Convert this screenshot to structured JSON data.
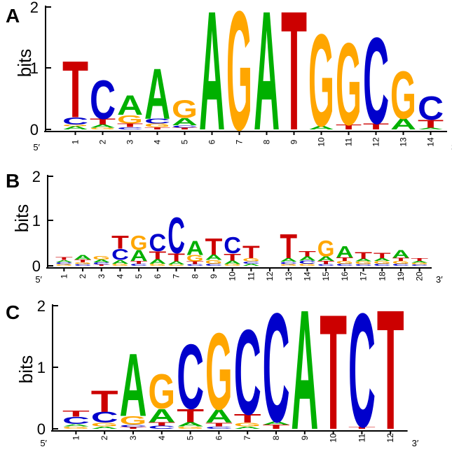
{
  "colors": {
    "A": "#00b000",
    "C": "#0000cc",
    "G": "#ffa600",
    "T": "#cc0000"
  },
  "ylabel": "bits",
  "end_labels": {
    "start": "5′",
    "end": "3′"
  },
  "panels": [
    {
      "label": "A",
      "yticks": [
        "0",
        "1",
        "2"
      ],
      "positions": [
        {
          "n": "1",
          "stack": [
            [
              "A",
              0.05
            ],
            [
              "G",
              0.03
            ],
            [
              "C",
              0.12
            ],
            [
              "T",
              0.95
            ]
          ]
        },
        {
          "n": "2",
          "stack": [
            [
              "G",
              0.03
            ],
            [
              "A",
              0.05
            ],
            [
              "T",
              0.1
            ],
            [
              "C",
              0.65
            ]
          ]
        },
        {
          "n": "3",
          "stack": [
            [
              "C",
              0.04
            ],
            [
              "T",
              0.06
            ],
            [
              "G",
              0.14
            ],
            [
              "A",
              0.33
            ]
          ]
        },
        {
          "n": "4",
          "stack": [
            [
              "T",
              0.04
            ],
            [
              "G",
              0.06
            ],
            [
              "C",
              0.08
            ],
            [
              "A",
              0.85
            ]
          ]
        },
        {
          "n": "5",
          "stack": [
            [
              "T",
              0.03
            ],
            [
              "C",
              0.04
            ],
            [
              "A",
              0.12
            ],
            [
              "G",
              0.3
            ]
          ]
        },
        {
          "n": "6",
          "stack": [
            [
              "A",
              2.0
            ]
          ]
        },
        {
          "n": "7",
          "stack": [
            [
              "G",
              2.0
            ]
          ]
        },
        {
          "n": "8",
          "stack": [
            [
              "A",
              2.0
            ]
          ]
        },
        {
          "n": "9",
          "stack": [
            [
              "T",
              2.0
            ]
          ]
        },
        {
          "n": "10",
          "stack": [
            [
              "A",
              0.06
            ],
            [
              "G",
              1.55
            ]
          ]
        },
        {
          "n": "11",
          "stack": [
            [
              "T",
              0.08
            ],
            [
              "G",
              1.38
            ]
          ]
        },
        {
          "n": "12",
          "stack": [
            [
              "T",
              0.1
            ],
            [
              "C",
              1.45
            ]
          ]
        },
        {
          "n": "13",
          "stack": [
            [
              "A",
              0.18
            ],
            [
              "G",
              0.8
            ]
          ]
        },
        {
          "n": "14",
          "stack": [
            [
              "A",
              0.03
            ],
            [
              "T",
              0.13
            ],
            [
              "C",
              0.4
            ]
          ]
        }
      ]
    },
    {
      "label": "B",
      "yticks": [
        "0",
        "1",
        "2"
      ],
      "positions": [
        {
          "n": "1",
          "stack": [
            [
              "G",
              0.04
            ],
            [
              "C",
              0.04
            ],
            [
              "A",
              0.05
            ],
            [
              "T",
              0.06
            ]
          ]
        },
        {
          "n": "2",
          "stack": [
            [
              "C",
              0.04
            ],
            [
              "G",
              0.04
            ],
            [
              "T",
              0.06
            ],
            [
              "A",
              0.1
            ]
          ]
        },
        {
          "n": "3",
          "stack": [
            [
              "T",
              0.03
            ],
            [
              "C",
              0.05
            ],
            [
              "A",
              0.06
            ],
            [
              "G",
              0.08
            ]
          ]
        },
        {
          "n": "4",
          "stack": [
            [
              "G",
              0.05
            ],
            [
              "A",
              0.08
            ],
            [
              "C",
              0.25
            ],
            [
              "T",
              0.3
            ]
          ]
        },
        {
          "n": "5",
          "stack": [
            [
              "C",
              0.05
            ],
            [
              "T",
              0.06
            ],
            [
              "A",
              0.25
            ],
            [
              "G",
              0.32
            ]
          ]
        },
        {
          "n": "6",
          "stack": [
            [
              "G",
              0.05
            ],
            [
              "A",
              0.1
            ],
            [
              "T",
              0.18
            ],
            [
              "C",
              0.4
            ]
          ]
        },
        {
          "n": "7",
          "stack": [
            [
              "G",
              0.03
            ],
            [
              "A",
              0.07
            ],
            [
              "T",
              0.18
            ],
            [
              "C",
              0.82
            ]
          ]
        },
        {
          "n": "8",
          "stack": [
            [
              "C",
              0.04
            ],
            [
              "T",
              0.06
            ],
            [
              "G",
              0.14
            ],
            [
              "A",
              0.32
            ]
          ]
        },
        {
          "n": "9",
          "stack": [
            [
              "C",
              0.05
            ],
            [
              "G",
              0.08
            ],
            [
              "A",
              0.12
            ],
            [
              "T",
              0.38
            ]
          ]
        },
        {
          "n": "10",
          "stack": [
            [
              "G",
              0.04
            ],
            [
              "A",
              0.08
            ],
            [
              "T",
              0.16
            ],
            [
              "C",
              0.38
            ]
          ]
        },
        {
          "n": "11",
          "stack": [
            [
              "A",
              0.05
            ],
            [
              "C",
              0.05
            ],
            [
              "G",
              0.07
            ],
            [
              "T",
              0.28
            ]
          ]
        },
        {
          "n": "12",
          "stack": []
        },
        {
          "n": "13",
          "stack": [
            [
              "G",
              0.04
            ],
            [
              "C",
              0.05
            ],
            [
              "A",
              0.08
            ],
            [
              "T",
              0.55
            ]
          ]
        },
        {
          "n": "14",
          "stack": [
            [
              "G",
              0.05
            ],
            [
              "C",
              0.07
            ],
            [
              "A",
              0.09
            ],
            [
              "T",
              0.12
            ]
          ]
        },
        {
          "n": "15",
          "stack": [
            [
              "C",
              0.04
            ],
            [
              "T",
              0.07
            ],
            [
              "A",
              0.1
            ],
            [
              "G",
              0.36
            ]
          ]
        },
        {
          "n": "16",
          "stack": [
            [
              "C",
              0.05
            ],
            [
              "G",
              0.06
            ],
            [
              "T",
              0.08
            ],
            [
              "A",
              0.26
            ]
          ]
        },
        {
          "n": "17",
          "stack": [
            [
              "C",
              0.04
            ],
            [
              "G",
              0.06
            ],
            [
              "A",
              0.06
            ],
            [
              "T",
              0.16
            ]
          ]
        },
        {
          "n": "18",
          "stack": [
            [
              "C",
              0.05
            ],
            [
              "G",
              0.06
            ],
            [
              "A",
              0.06
            ],
            [
              "T",
              0.12
            ]
          ]
        },
        {
          "n": "19",
          "stack": [
            [
              "C",
              0.05
            ],
            [
              "G",
              0.06
            ],
            [
              "T",
              0.07
            ],
            [
              "A",
              0.18
            ]
          ]
        },
        {
          "n": "20",
          "stack": [
            [
              "C",
              0.03
            ],
            [
              "G",
              0.04
            ],
            [
              "A",
              0.04
            ],
            [
              "T",
              0.06
            ]
          ]
        }
      ]
    },
    {
      "label": "C",
      "yticks": [
        "0",
        "1",
        "2"
      ],
      "positions": [
        {
          "n": "1",
          "stack": [
            [
              "G",
              0.04
            ],
            [
              "A",
              0.04
            ],
            [
              "C",
              0.12
            ],
            [
              "T",
              0.1
            ]
          ]
        },
        {
          "n": "2",
          "stack": [
            [
              "A",
              0.04
            ],
            [
              "G",
              0.06
            ],
            [
              "C",
              0.18
            ],
            [
              "T",
              0.36
            ]
          ]
        },
        {
          "n": "3",
          "stack": [
            [
              "T",
              0.03
            ],
            [
              "C",
              0.04
            ],
            [
              "G",
              0.14
            ],
            [
              "A",
              1.05
            ]
          ]
        },
        {
          "n": "4",
          "stack": [
            [
              "C",
              0.05
            ],
            [
              "T",
              0.06
            ],
            [
              "A",
              0.22
            ],
            [
              "G",
              0.58
            ]
          ]
        },
        {
          "n": "5",
          "stack": [
            [
              "G",
              0.04
            ],
            [
              "A",
              0.07
            ],
            [
              "T",
              0.22
            ],
            [
              "C",
              1.08
            ]
          ]
        },
        {
          "n": "6",
          "stack": [
            [
              "C",
              0.04
            ],
            [
              "T",
              0.06
            ],
            [
              "A",
              0.22
            ],
            [
              "G",
              1.28
            ]
          ]
        },
        {
          "n": "7",
          "stack": [
            [
              "A",
              0.04
            ],
            [
              "G",
              0.06
            ],
            [
              "T",
              0.14
            ],
            [
              "C",
              1.42
            ]
          ]
        },
        {
          "n": "8",
          "stack": [
            [
              "T",
              0.07
            ],
            [
              "A",
              0.05
            ],
            [
              "C",
              1.82
            ]
          ]
        },
        {
          "n": "9",
          "stack": [
            [
              "A",
              2.0
            ]
          ]
        },
        {
          "n": "10",
          "stack": [
            [
              "T",
              1.92
            ]
          ]
        },
        {
          "n": "11",
          "stack": [
            [
              "T",
              0.04
            ],
            [
              "C",
              1.9
            ]
          ]
        },
        {
          "n": "12",
          "stack": [
            [
              "T",
              2.0
            ]
          ]
        }
      ]
    }
  ]
}
